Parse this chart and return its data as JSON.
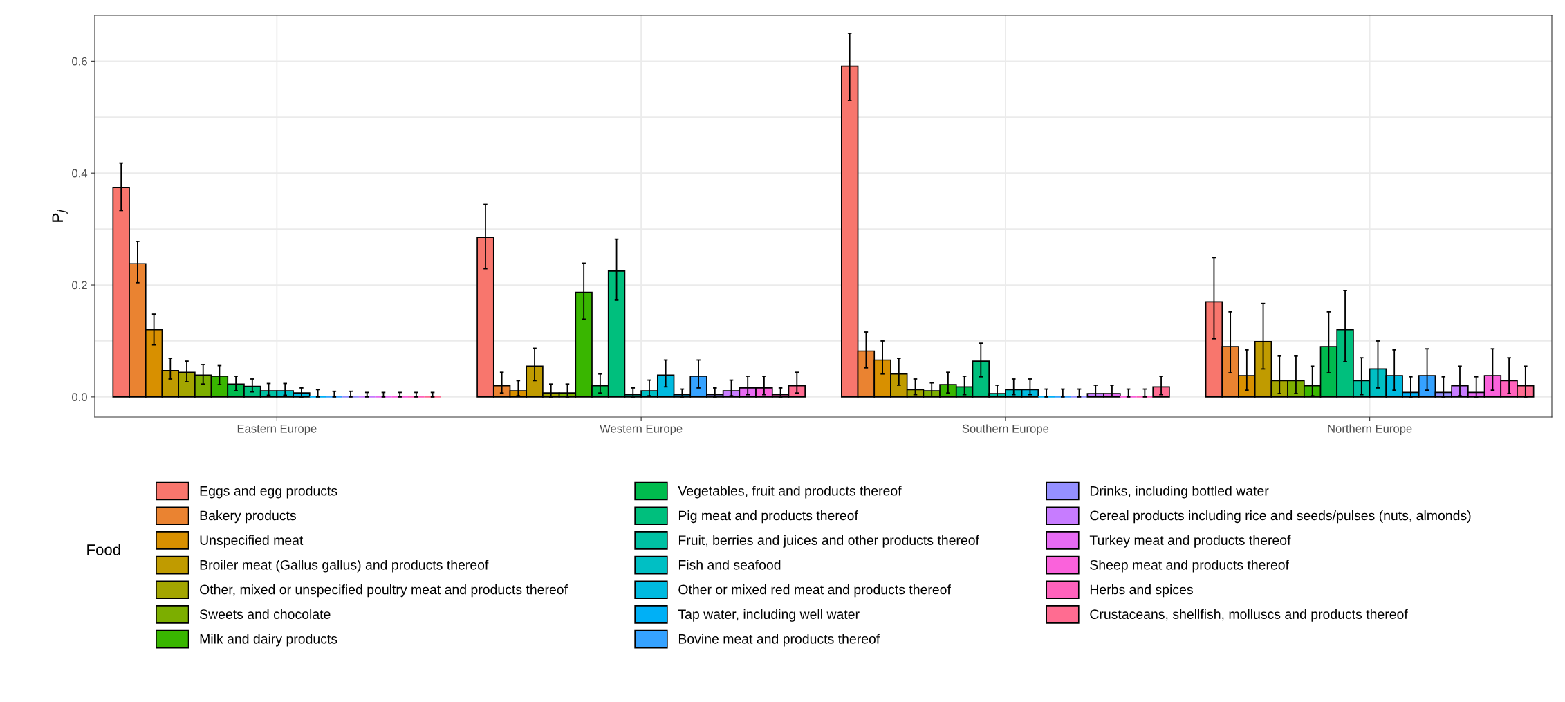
{
  "chart_data": {
    "type": "bar",
    "ylabel": "P$_{j}$",
    "legend_title": "Food",
    "legend": "bottom",
    "grid": true,
    "categories": [
      "Eastern Europe",
      "Western Europe",
      "Southern Europe",
      "Northern Europe"
    ],
    "ylim": [
      -0.036,
      0.682
    ],
    "yticks": [
      {
        "value": 0,
        "label": "0.0"
      },
      {
        "value": 0.1,
        "label": null
      },
      {
        "value": 0.2,
        "label": "0.2"
      },
      {
        "value": 0.3,
        "label": null
      },
      {
        "value": 0.4,
        "label": "0.4"
      },
      {
        "value": 0.5,
        "label": null
      },
      {
        "value": 0.6,
        "label": "0.6"
      }
    ],
    "series": [
      {
        "name": "Eggs and egg products",
        "color": "#f8766d",
        "values": [
          0.374,
          0.285,
          0.591,
          0.17
        ],
        "errors": [
          [
            0.333,
            0.418
          ],
          [
            0.229,
            0.344
          ],
          [
            0.53,
            0.65
          ],
          [
            0.104,
            0.249
          ]
        ]
      },
      {
        "name": "Bakery products",
        "color": "#ea8331",
        "values": [
          0.238,
          0.02,
          0.082,
          0.09
        ],
        "errors": [
          [
            0.204,
            0.278
          ],
          [
            0.007,
            0.044
          ],
          [
            0.052,
            0.116
          ],
          [
            0.043,
            0.152
          ]
        ]
      },
      {
        "name": "Unspecified meat",
        "color": "#d89000",
        "values": [
          0.12,
          0.011,
          0.066,
          0.038
        ],
        "errors": [
          [
            0.093,
            0.148
          ],
          [
            0.002,
            0.029
          ],
          [
            0.041,
            0.1
          ],
          [
            0.012,
            0.084
          ]
        ]
      },
      {
        "name": "Broiler meat (Gallus gallus) and products thereof",
        "color": "#c09b00",
        "values": [
          0.047,
          0.055,
          0.041,
          0.099
        ],
        "errors": [
          [
            0.032,
            0.069
          ],
          [
            0.029,
            0.087
          ],
          [
            0.021,
            0.069
          ],
          [
            0.05,
            0.167
          ]
        ]
      },
      {
        "name": "Other, mixed or unspecified poultry meat and products thereof",
        "color": "#a3a500",
        "values": [
          0.044,
          0.007,
          0.013,
          0.029
        ],
        "errors": [
          [
            0.027,
            0.064
          ],
          [
            0,
            0.023
          ],
          [
            0.004,
            0.032
          ],
          [
            0.006,
            0.073
          ]
        ]
      },
      {
        "name": "Sweets and chocolate",
        "color": "#7cae00",
        "values": [
          0.039,
          0.007,
          0.011,
          0.029
        ],
        "errors": [
          [
            0.023,
            0.058
          ],
          [
            0,
            0.023
          ],
          [
            0.001,
            0.025
          ],
          [
            0.006,
            0.073
          ]
        ]
      },
      {
        "name": "Milk and dairy products",
        "color": "#39b600",
        "values": [
          0.037,
          0.187,
          0.022,
          0.02
        ],
        "errors": [
          [
            0.022,
            0.056
          ],
          [
            0.139,
            0.239
          ],
          [
            0.007,
            0.044
          ],
          [
            0.002,
            0.055
          ]
        ]
      },
      {
        "name": "Vegetables, fruit and products thereof",
        "color": "#00bb4e",
        "values": [
          0.023,
          0.02,
          0.018,
          0.09
        ],
        "errors": [
          [
            0.011,
            0.037
          ],
          [
            0.007,
            0.041
          ],
          [
            0.004,
            0.037
          ],
          [
            0.043,
            0.152
          ]
        ]
      },
      {
        "name": "Pig meat and products thereof",
        "color": "#00bf7d",
        "values": [
          0.019,
          0.225,
          0.064,
          0.12
        ],
        "errors": [
          [
            0.009,
            0.032
          ],
          [
            0.173,
            0.282
          ],
          [
            0.036,
            0.096
          ],
          [
            0.063,
            0.19
          ]
        ]
      },
      {
        "name": "Fruit, berries and juices and other products thereof",
        "color": "#00c1a3",
        "values": [
          0.011,
          0.004,
          0.006,
          0.029
        ],
        "errors": [
          [
            0.003,
            0.024
          ],
          [
            0,
            0.016
          ],
          [
            0.001,
            0.021
          ],
          [
            0.004,
            0.07
          ]
        ]
      },
      {
        "name": "Fish and seafood",
        "color": "#00bfc4",
        "values": [
          0.011,
          0.011,
          0.013,
          0.05
        ],
        "errors": [
          [
            0.003,
            0.024
          ],
          [
            0.002,
            0.03
          ],
          [
            0.004,
            0.032
          ],
          [
            0.016,
            0.1
          ]
        ]
      },
      {
        "name": "Other or mixed red meat and products thereof",
        "color": "#00bae0",
        "values": [
          0.007,
          0.039,
          0.013,
          0.038
        ],
        "errors": [
          [
            0,
            0.016
          ],
          [
            0.018,
            0.066
          ],
          [
            0.004,
            0.032
          ],
          [
            0.012,
            0.084
          ]
        ]
      },
      {
        "name": "Tap water, including well water",
        "color": "#00b0f6",
        "values": [
          0,
          0.004,
          0,
          0.008
        ],
        "errors": [
          [
            0,
            0.013
          ],
          [
            0,
            0.014
          ],
          [
            0,
            0.014
          ],
          [
            0,
            0.036
          ]
        ]
      },
      {
        "name": "Bovine meat and products thereof",
        "color": "#35a2ff",
        "values": [
          0,
          0.037,
          0,
          0.038
        ],
        "errors": [
          [
            0,
            0.01
          ],
          [
            0.016,
            0.066
          ],
          [
            0,
            0.014
          ],
          [
            0.012,
            0.086
          ]
        ]
      },
      {
        "name": "Drinks, including bottled water",
        "color": "#9590ff",
        "values": [
          0,
          0.004,
          0,
          0.008
        ],
        "errors": [
          [
            0,
            0.01
          ],
          [
            0,
            0.016
          ],
          [
            0,
            0.014
          ],
          [
            0,
            0.036
          ]
        ]
      },
      {
        "name": "Cereal products including rice and seeds/pulses (nuts, almonds)",
        "color": "#c77cff",
        "values": [
          0,
          0.011,
          0.006,
          0.02
        ],
        "errors": [
          [
            0,
            0.008
          ],
          [
            0.002,
            0.03
          ],
          [
            0.001,
            0.021
          ],
          [
            0.002,
            0.055
          ]
        ]
      },
      {
        "name": "Turkey meat and products thereof",
        "color": "#e76bf3",
        "values": [
          0,
          0.016,
          0.006,
          0.008
        ],
        "errors": [
          [
            0,
            0.008
          ],
          [
            0.004,
            0.037
          ],
          [
            0.001,
            0.021
          ],
          [
            0,
            0.036
          ]
        ]
      },
      {
        "name": "Sheep meat and products thereof",
        "color": "#fa62db",
        "values": [
          0,
          0.016,
          0,
          0.038
        ],
        "errors": [
          [
            0,
            0.008
          ],
          [
            0.004,
            0.037
          ],
          [
            0,
            0.014
          ],
          [
            0.012,
            0.086
          ]
        ]
      },
      {
        "name": "Herbs and spices",
        "color": "#ff62bc",
        "values": [
          0,
          0.004,
          0,
          0.029
        ],
        "errors": [
          [
            0,
            0.008
          ],
          [
            0,
            0.016
          ],
          [
            0,
            0.014
          ],
          [
            0.006,
            0.07
          ]
        ]
      },
      {
        "name": "Crustaceans, shellfish, molluscs and products thereof",
        "color": "#ff6c91",
        "values": [
          0,
          0.02,
          0.018,
          0.02
        ],
        "errors": [
          [
            0,
            0.008
          ],
          [
            0.007,
            0.044
          ],
          [
            0.004,
            0.037
          ],
          [
            0,
            0.055
          ]
        ]
      }
    ]
  }
}
